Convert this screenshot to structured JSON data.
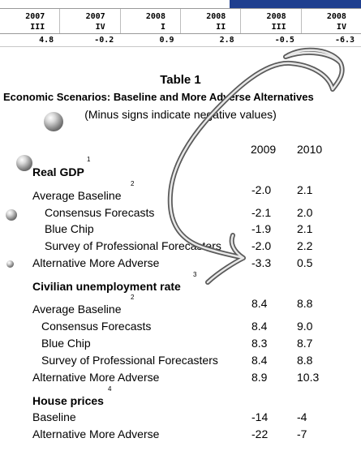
{
  "quarter_table": {
    "headers": [
      {
        "year": "2007",
        "q": "III"
      },
      {
        "year": "2007",
        "q": "IV"
      },
      {
        "year": "2008",
        "q": "I"
      },
      {
        "year": "2008",
        "q": "II"
      },
      {
        "year": "2008",
        "q": "III"
      },
      {
        "year": "2008",
        "q": "IV"
      }
    ],
    "values": [
      "4.8",
      "-0.2",
      "0.9",
      "2.8",
      "-0.5",
      "-6.3"
    ],
    "accent_color": "#1f3f8f"
  },
  "title": "Table 1",
  "subtitle": "Economic Scenarios: Baseline and More Adverse Alternatives",
  "note": "(Minus signs indicate negative values)",
  "years": [
    "2009",
    "2010"
  ],
  "sections": [
    {
      "heading": "Real GDP",
      "footnote": "1",
      "rows": [
        {
          "label": "Average Baseline",
          "footnote": "2",
          "v2009": "-2.0",
          "v2010": "2.1"
        },
        {
          "label": "Consensus Forecasts",
          "v2009": "-2.1",
          "v2010": "2.0"
        },
        {
          "label": "Blue Chip",
          "v2009": "-1.9",
          "v2010": "2.1"
        },
        {
          "label": "Survey of Professional Forecasters",
          "v2009": "-2.0",
          "v2010": "2.2"
        },
        {
          "label": "Alternative More Adverse",
          "v2009": "-3.3",
          "v2010": "0.5"
        }
      ]
    },
    {
      "heading": "Civilian unemployment rate",
      "footnote": "3",
      "rows": [
        {
          "label": "Average Baseline",
          "footnote": "2",
          "v2009": "8.4",
          "v2010": "8.8"
        },
        {
          "label": "Consensus Forecasts",
          "v2009": "8.4",
          "v2010": "9.0"
        },
        {
          "label": "Blue Chip",
          "v2009": "8.3",
          "v2010": "8.7"
        },
        {
          "label": "Survey of Professional Forecasters",
          "v2009": "8.4",
          "v2010": "8.8"
        },
        {
          "label": "Alternative More Adverse",
          "v2009": "8.9",
          "v2010": "10.3"
        }
      ]
    },
    {
      "heading": "House prices",
      "footnote": "4",
      "rows": [
        {
          "label": "Baseline",
          "v2009": "-14",
          "v2010": "-4"
        },
        {
          "label": "Alternative More Adverse",
          "v2009": "-22",
          "v2010": "-7"
        }
      ]
    }
  ]
}
